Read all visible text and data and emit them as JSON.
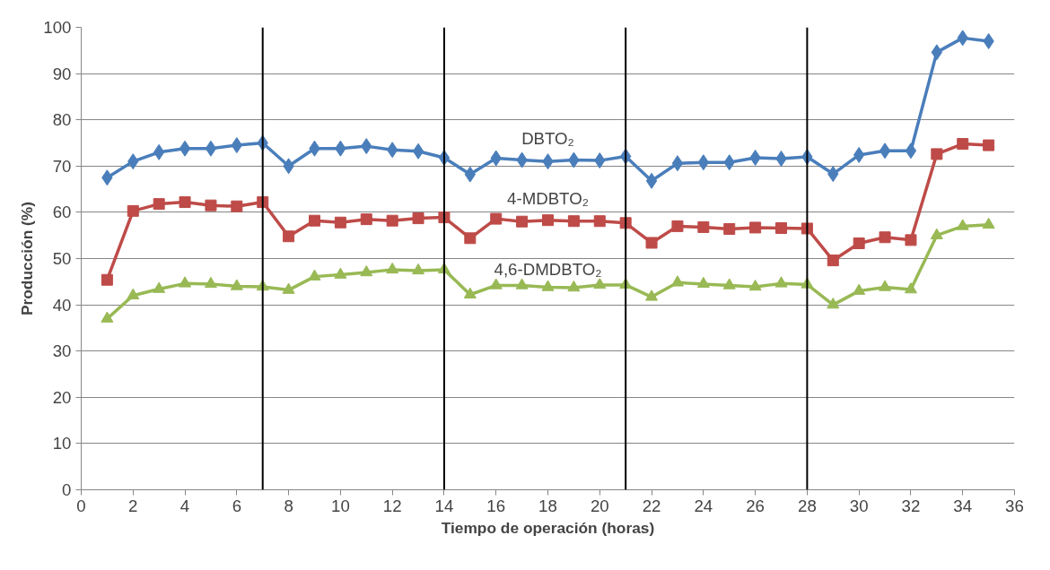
{
  "chart_data": {
    "type": "line",
    "xlabel": "Tiempo de operación (horas)",
    "ylabel": "Producción (%)",
    "x": [
      1,
      2,
      3,
      4,
      5,
      6,
      7,
      8,
      9,
      10,
      11,
      12,
      13,
      14,
      15,
      16,
      17,
      18,
      19,
      20,
      21,
      22,
      23,
      24,
      25,
      26,
      27,
      28,
      29,
      30,
      31,
      32,
      33,
      34,
      35
    ],
    "series": [
      {
        "name": "DBTO₂",
        "color": "#4a7ebb",
        "marker": "diamond",
        "values": [
          67.5,
          71,
          73,
          73.8,
          73.8,
          74.5,
          75,
          70,
          73.8,
          73.8,
          74.3,
          73.5,
          73.2,
          71.8,
          68.2,
          71.7,
          71.3,
          71,
          71.3,
          71.2,
          72.1,
          66.8,
          70.6,
          70.8,
          70.8,
          71.8,
          71.6,
          72,
          68.3,
          72.4,
          73.3,
          73.3,
          94.6,
          97.7,
          97
        ]
      },
      {
        "name": "4-MDBTO₂",
        "color": "#be4b48",
        "marker": "square",
        "values": [
          45.4,
          60.3,
          61.8,
          62.2,
          61.5,
          61.3,
          62.2,
          54.8,
          58.2,
          57.8,
          58.5,
          58.2,
          58.7,
          58.9,
          54.4,
          58.6,
          58,
          58.3,
          58.1,
          58.1,
          57.7,
          53.4,
          57,
          56.8,
          56.4,
          56.7,
          56.6,
          56.5,
          49.6,
          53.3,
          54.6,
          54,
          72.6,
          74.8,
          74.5
        ]
      },
      {
        "name": "4,6-DMDBTO₂",
        "color": "#98b954",
        "marker": "triangle",
        "values": [
          37,
          42,
          43.4,
          44.6,
          44.5,
          44,
          43.9,
          43.2,
          46.1,
          46.5,
          47,
          47.6,
          47.4,
          47.6,
          42.2,
          44.2,
          44.2,
          43.8,
          43.7,
          44.3,
          44.3,
          41.7,
          44.8,
          44.5,
          44.2,
          43.9,
          44.6,
          44.4,
          40,
          43,
          43.8,
          43.3,
          55,
          57,
          57.3
        ]
      }
    ],
    "ref_lines": [
      {
        "axis": "x",
        "value": 7,
        "color": "#000000"
      },
      {
        "axis": "x",
        "value": 14,
        "color": "#000000"
      },
      {
        "axis": "x",
        "value": 21,
        "color": "#000000"
      },
      {
        "axis": "x",
        "value": 28,
        "color": "#000000"
      }
    ],
    "xlim": [
      0,
      36
    ],
    "xticks": [
      0,
      2,
      4,
      6,
      8,
      10,
      12,
      14,
      16,
      18,
      20,
      22,
      24,
      26,
      28,
      30,
      32,
      34,
      36
    ],
    "ylim": [
      0,
      100
    ],
    "yticks": [
      0,
      10,
      20,
      30,
      40,
      50,
      60,
      70,
      80,
      90,
      100
    ],
    "grid": "y",
    "legend": false
  }
}
